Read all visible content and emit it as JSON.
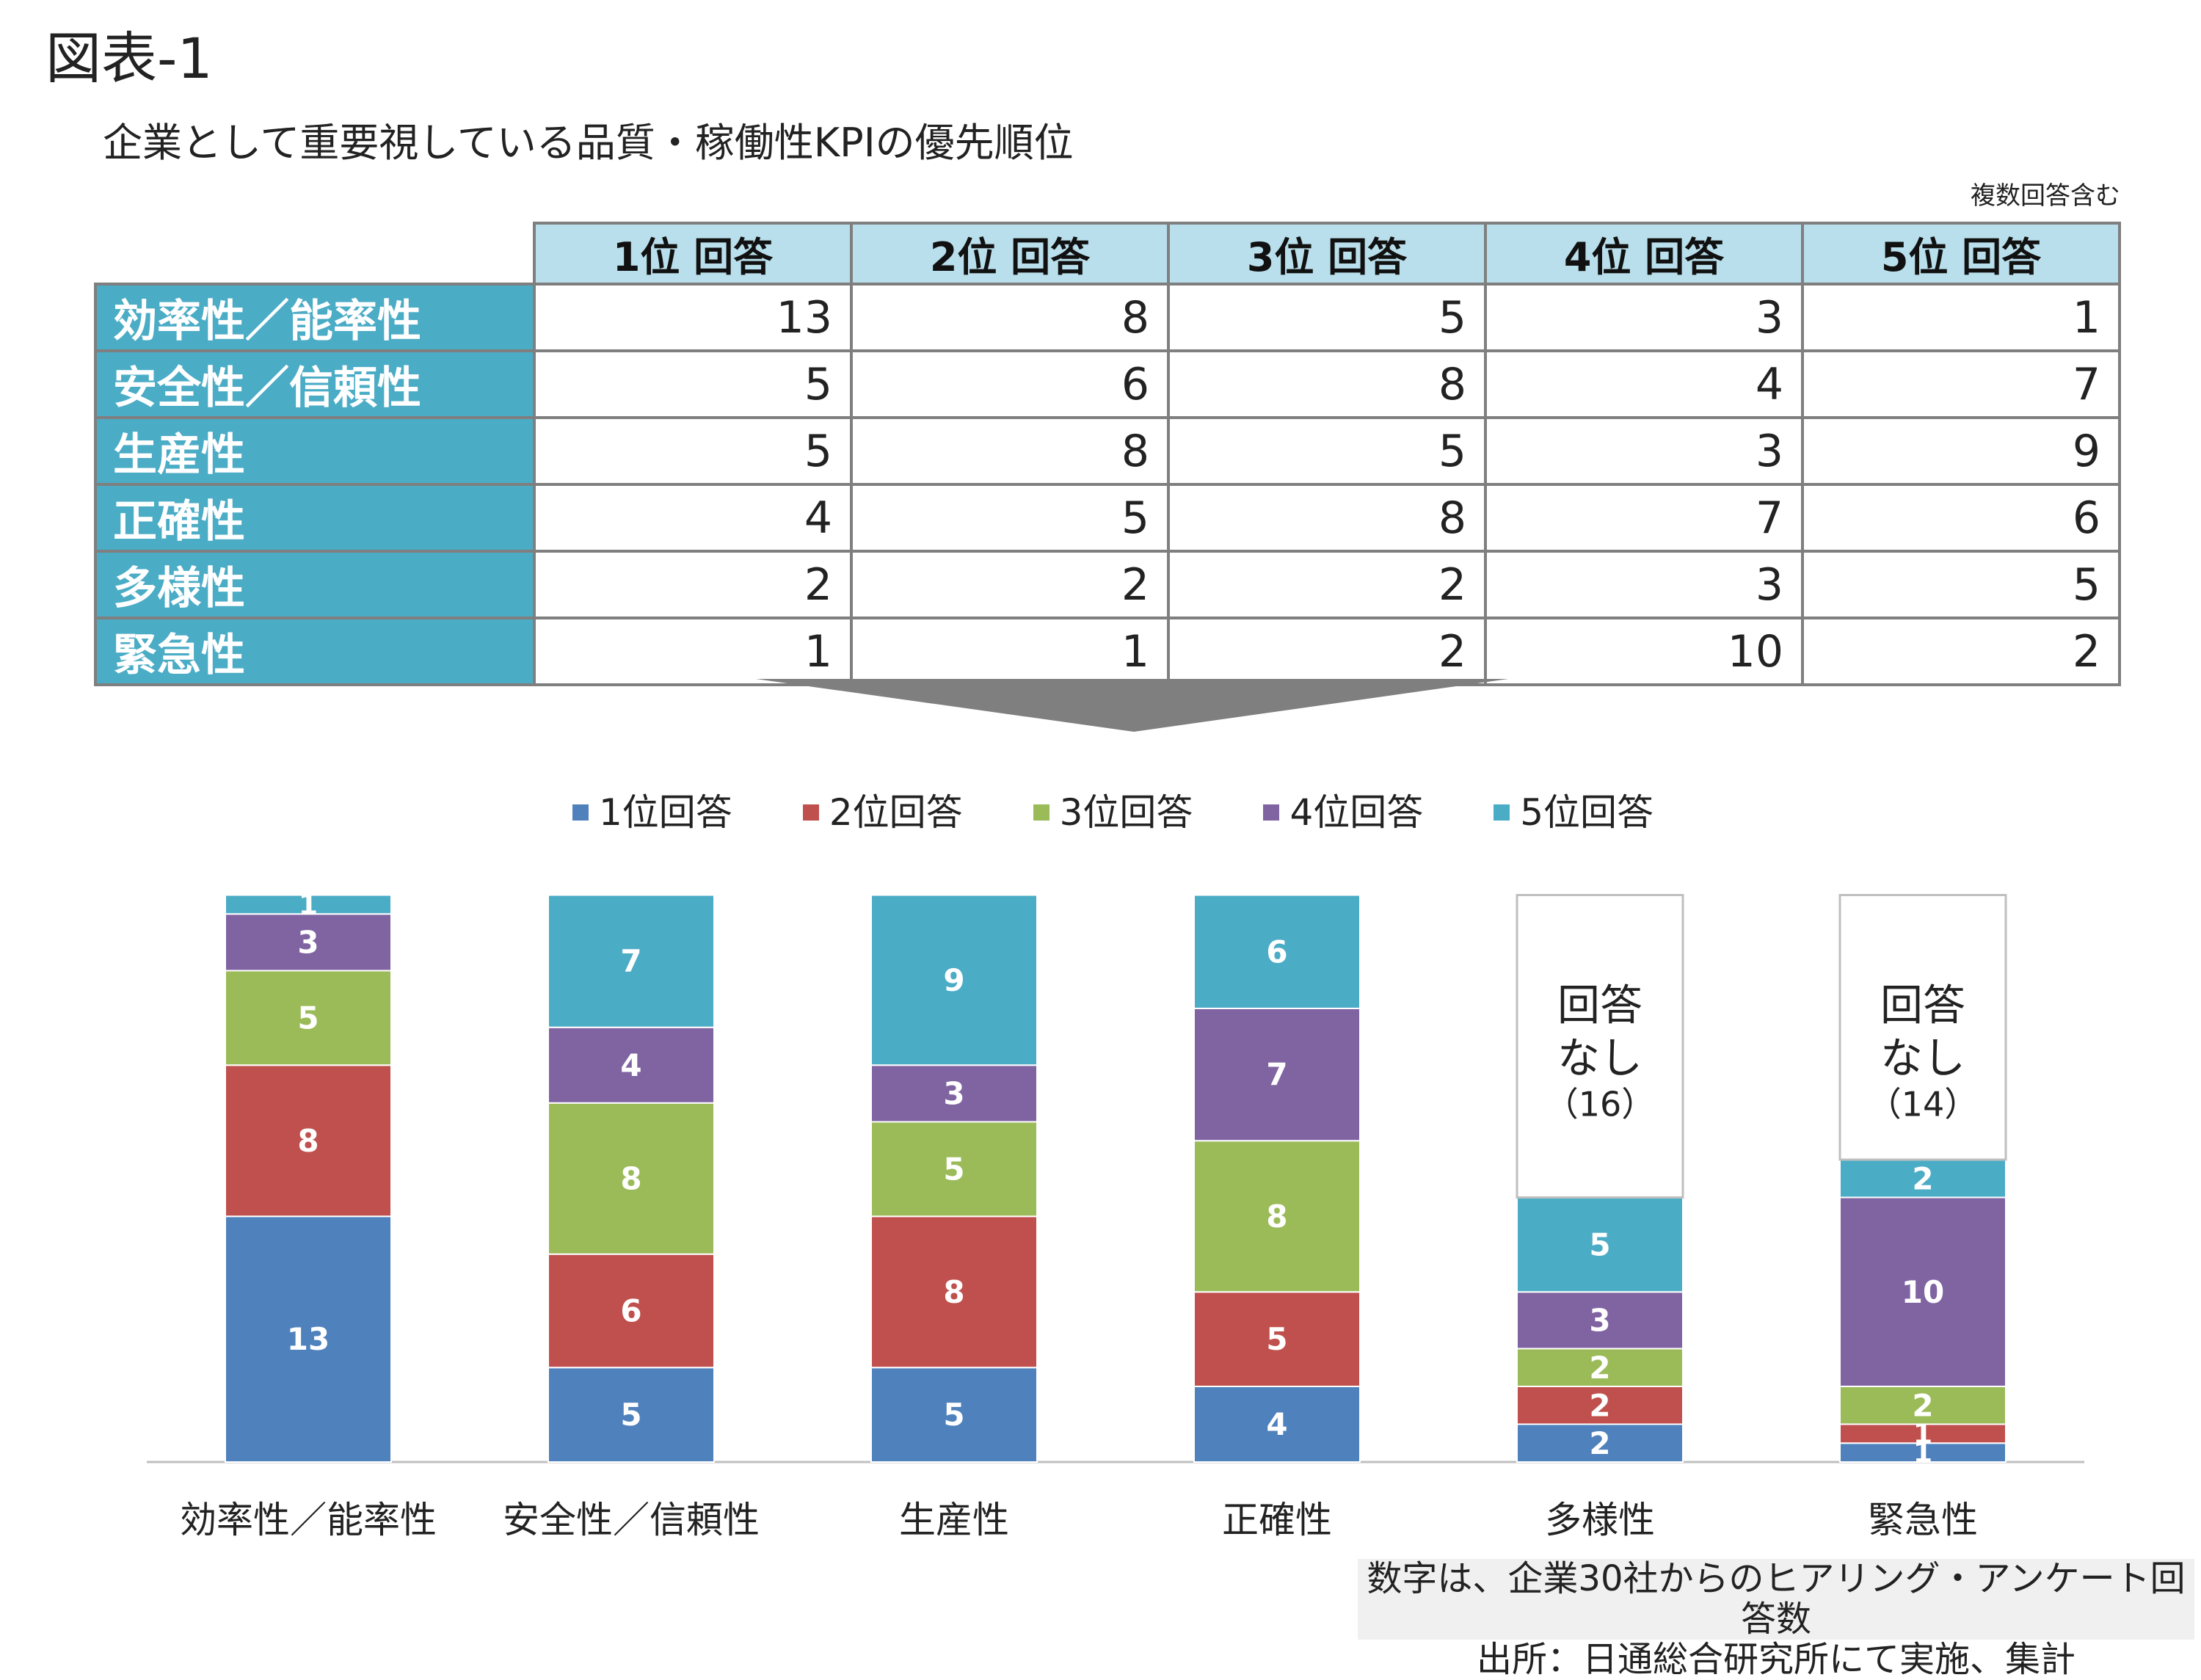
{
  "figure_label": "図表-1",
  "subtitle": "企業として重要視している品質・稼働性KPIの優先順位",
  "note_top": "複数回答含む",
  "table": {
    "columns": [
      "1位 回答",
      "2位 回答",
      "3位 回答",
      "4位 回答",
      "5位 回答"
    ],
    "rows": [
      {
        "label": "効率性／能率性",
        "values": [
          13,
          8,
          5,
          3,
          1
        ]
      },
      {
        "label": "安全性／信頼性",
        "values": [
          5,
          6,
          8,
          4,
          7
        ]
      },
      {
        "label": "生産性",
        "values": [
          5,
          8,
          5,
          3,
          9
        ]
      },
      {
        "label": "正確性",
        "values": [
          4,
          5,
          8,
          7,
          6
        ]
      },
      {
        "label": "多様性",
        "values": [
          2,
          2,
          2,
          3,
          5
        ]
      },
      {
        "label": "緊急性",
        "values": [
          1,
          1,
          2,
          10,
          2
        ]
      }
    ]
  },
  "colors": {
    "rank1": "#4f81bd",
    "rank2": "#c0504d",
    "rank3": "#9bbb59",
    "rank4": "#8064a2",
    "rank5": "#4bacc6",
    "table_header": "#b9dfec",
    "row_header": "#4bacc6",
    "arrow": "#7f7f7f"
  },
  "chart_data": {
    "type": "bar",
    "stacked": true,
    "categories": [
      "効率性／能率性",
      "安全性／信頼性",
      "生産性",
      "正確性",
      "多様性",
      "緊急性"
    ],
    "series": [
      {
        "name": "1位回答",
        "values": [
          13,
          5,
          5,
          4,
          2,
          1
        ]
      },
      {
        "name": "2位回答",
        "values": [
          8,
          6,
          8,
          5,
          2,
          1
        ]
      },
      {
        "name": "3位回答",
        "values": [
          5,
          8,
          5,
          8,
          2,
          2
        ]
      },
      {
        "name": "4位回答",
        "values": [
          3,
          4,
          3,
          7,
          3,
          10
        ]
      },
      {
        "name": "5位回答",
        "values": [
          1,
          7,
          9,
          6,
          5,
          2
        ]
      }
    ],
    "no_answer": [
      {
        "category": "多様性",
        "line1": "回答",
        "line2": "なし",
        "count": "（16）",
        "value": 16
      },
      {
        "category": "緊急性",
        "line1": "回答",
        "line2": "なし",
        "count": "（14）",
        "value": 14
      }
    ],
    "ylim": [
      0,
      30
    ],
    "legend_position": "top",
    "grid": false
  },
  "source": {
    "line1": "数字は、企業30社からのヒアリング・アンケート回答数",
    "line2": "出所：日通総合研究所にて実施、集計"
  }
}
